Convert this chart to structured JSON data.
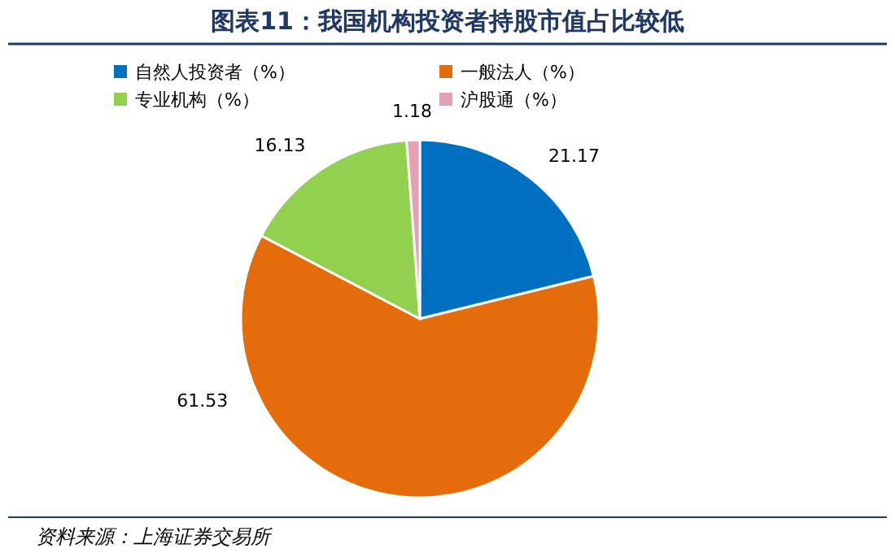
{
  "chart_data": {
    "type": "pie",
    "title": "图表11：我国机构投资者持股市值占比较低",
    "categories": [
      "自然人投资者（%）",
      "一般法人（%）",
      "专业机构（%）",
      "沪股通（%）"
    ],
    "values": [
      21.17,
      61.53,
      16.13,
      1.18
    ],
    "colors": [
      "#0070c0",
      "#e46c0a",
      "#92d050",
      "#e6a0b4"
    ],
    "data_labels": true,
    "legend": "top",
    "annotations": [
      "资料来源：上海证券交易所"
    ]
  }
}
